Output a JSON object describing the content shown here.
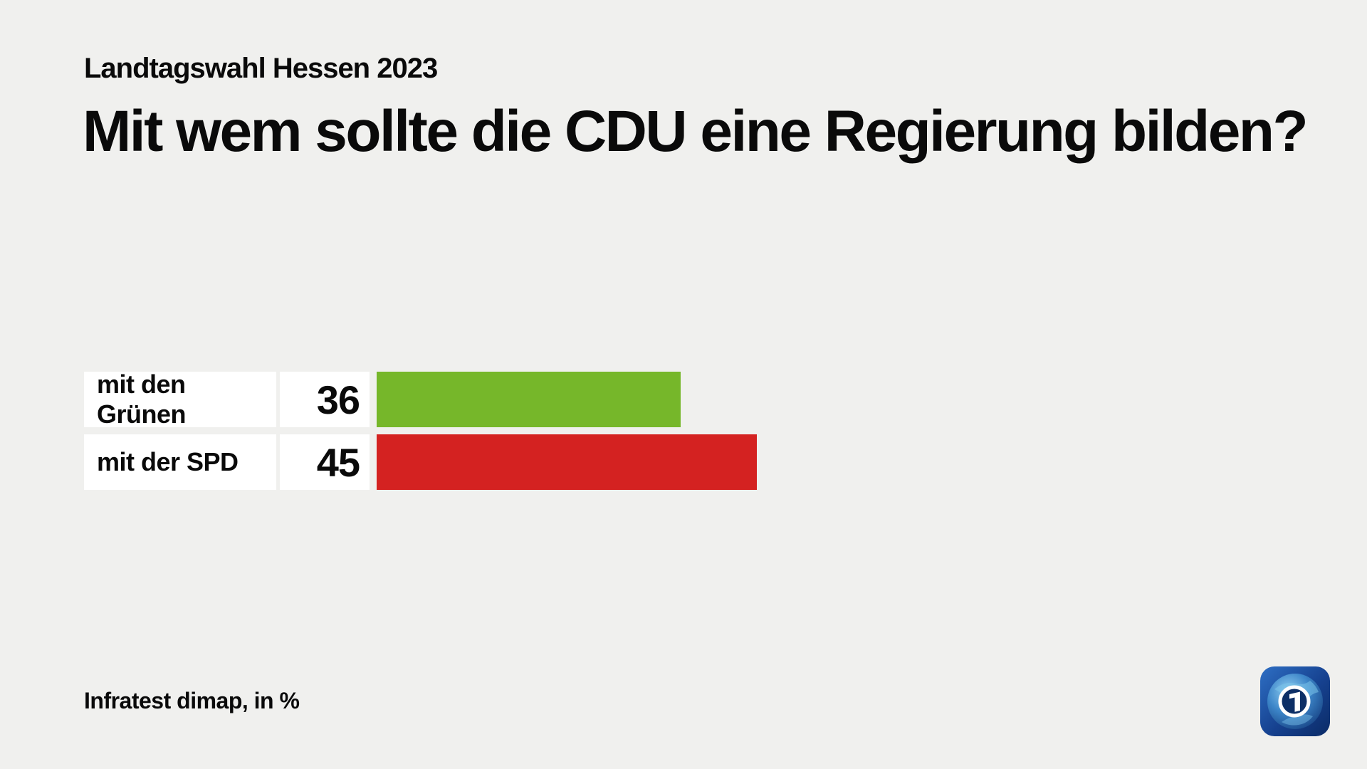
{
  "header": {
    "kicker": "Landtagswahl Hessen 2023",
    "title": "Mit wem sollte die CDU eine Regierung bilden?"
  },
  "chart_data": {
    "type": "bar",
    "orientation": "horizontal",
    "title": "Mit wem sollte die CDU eine Regierung bilden?",
    "subtitle": "Landtagswahl Hessen 2023",
    "categories": [
      "mit den Grünen",
      "mit der SPD"
    ],
    "values": [
      36,
      45
    ],
    "unit": "%",
    "xlim": [
      0,
      45
    ],
    "grid": false,
    "legend": false,
    "bar_colors": [
      "#76B72A",
      "#D42221"
    ],
    "value_labels_shown": true
  },
  "footer": {
    "source": "Infratest dimap, in %"
  },
  "logo": {
    "glyph": "1",
    "colors": {
      "square_light": "#2E6FC4",
      "square_dark": "#0B2B66",
      "globe_light": "#6FBBE8",
      "globe_dark": "#123E85",
      "ring": "#FFFFFF",
      "ring_fill": "#0D2F66"
    }
  }
}
